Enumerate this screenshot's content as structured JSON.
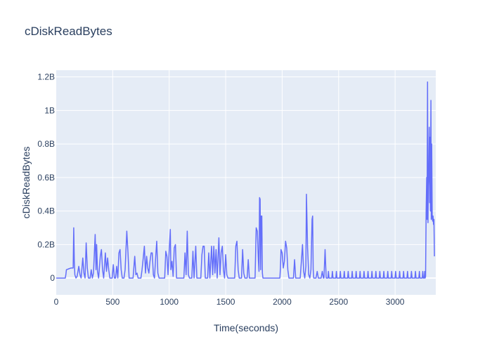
{
  "chart_data": {
    "type": "line",
    "title": "cDiskReadBytes",
    "xlabel": "Time(seconds)",
    "ylabel": "cDiskReadBytes",
    "xlim": [
      0,
      3360
    ],
    "ylim": [
      -0.1,
      1.24
    ],
    "y_unit": "B (billions of bytes)",
    "x_ticks": [
      0,
      500,
      1000,
      1500,
      2000,
      2500,
      3000
    ],
    "x_tick_labels": [
      "0",
      "500",
      "1000",
      "1500",
      "2000",
      "2500",
      "3000"
    ],
    "y_ticks": [
      0,
      0.2,
      0.4,
      0.6,
      0.8,
      1.0,
      1.2
    ],
    "y_tick_labels": [
      "0",
      "0.2B",
      "0.4B",
      "0.6B",
      "0.8B",
      "1B",
      "1.2B"
    ],
    "grid": true,
    "legend": "none",
    "colors": {
      "line": "#636efa",
      "plot_bg": "#e5ecf6",
      "grid": "#ffffff",
      "text": "#2a3f5f"
    },
    "series": [
      {
        "values": [
          [
            0,
            0
          ],
          [
            80,
            0
          ],
          [
            85,
            0.02
          ],
          [
            90,
            0.05
          ],
          [
            110,
            0.055
          ],
          [
            130,
            0.06
          ],
          [
            145,
            0.06
          ],
          [
            150,
            0.06
          ],
          [
            155,
            0.3
          ],
          [
            160,
            0.1
          ],
          [
            165,
            0.02
          ],
          [
            175,
            0.0
          ],
          [
            185,
            0.01
          ],
          [
            200,
            0.07
          ],
          [
            210,
            0.02
          ],
          [
            220,
            0.0
          ],
          [
            235,
            0.12
          ],
          [
            245,
            0.03
          ],
          [
            255,
            0.0
          ],
          [
            265,
            0.21
          ],
          [
            275,
            0.06
          ],
          [
            285,
            0.0
          ],
          [
            300,
            0.0
          ],
          [
            310,
            0.05
          ],
          [
            320,
            0.0
          ],
          [
            330,
            0.03
          ],
          [
            345,
            0.26
          ],
          [
            352,
            0.05
          ],
          [
            358,
            0.2
          ],
          [
            365,
            0.04
          ],
          [
            375,
            0.0
          ],
          [
            390,
            0.13
          ],
          [
            400,
            0.17
          ],
          [
            410,
            0.05
          ],
          [
            420,
            0.0
          ],
          [
            435,
            0.15
          ],
          [
            445,
            0.04
          ],
          [
            455,
            0.12
          ],
          [
            465,
            0.05
          ],
          [
            475,
            0.0
          ],
          [
            495,
            0.0
          ],
          [
            505,
            0.08
          ],
          [
            515,
            0.0
          ],
          [
            525,
            0.0
          ],
          [
            535,
            0.07
          ],
          [
            545,
            0.0
          ],
          [
            555,
            0.15
          ],
          [
            565,
            0.17
          ],
          [
            575,
            0.05
          ],
          [
            585,
            0.0
          ],
          [
            600,
            0.0
          ],
          [
            610,
            0.05
          ],
          [
            625,
            0.28
          ],
          [
            635,
            0.15
          ],
          [
            645,
            0.0
          ],
          [
            680,
            0.0
          ],
          [
            695,
            0.13
          ],
          [
            705,
            0.02
          ],
          [
            715,
            0.03
          ],
          [
            725,
            0.0
          ],
          [
            750,
            0.0
          ],
          [
            760,
            0.05
          ],
          [
            770,
            0.12
          ],
          [
            780,
            0.19
          ],
          [
            790,
            0.03
          ],
          [
            800,
            0.13
          ],
          [
            810,
            0.06
          ],
          [
            820,
            0.03
          ],
          [
            830,
            0.1
          ],
          [
            840,
            0.15
          ],
          [
            850,
            0.15
          ],
          [
            860,
            0.02
          ],
          [
            870,
            0.0
          ],
          [
            880,
            0.12
          ],
          [
            890,
            0.22
          ],
          [
            900,
            0.03
          ],
          [
            910,
            0.0
          ],
          [
            960,
            0.0
          ],
          [
            970,
            0.16
          ],
          [
            980,
            0.13
          ],
          [
            990,
            0.02
          ],
          [
            1000,
            0.16
          ],
          [
            1010,
            0.29
          ],
          [
            1015,
            0.05
          ],
          [
            1025,
            0.1
          ],
          [
            1035,
            0.01
          ],
          [
            1045,
            0.18
          ],
          [
            1055,
            0.2
          ],
          [
            1065,
            0.0
          ],
          [
            1130,
            0.0
          ],
          [
            1140,
            0.15
          ],
          [
            1150,
            0.02
          ],
          [
            1160,
            0.28
          ],
          [
            1170,
            0.02
          ],
          [
            1180,
            0.0
          ],
          [
            1200,
            0.0
          ],
          [
            1210,
            0.16
          ],
          [
            1220,
            0.0
          ],
          [
            1235,
            0.19
          ],
          [
            1245,
            0.0
          ],
          [
            1280,
            0.0
          ],
          [
            1290,
            0.14
          ],
          [
            1300,
            0.19
          ],
          [
            1310,
            0.19
          ],
          [
            1320,
            0.0
          ],
          [
            1340,
            0.0
          ],
          [
            1350,
            0.15
          ],
          [
            1360,
            0.0
          ],
          [
            1375,
            0.19
          ],
          [
            1385,
            0.02
          ],
          [
            1395,
            0.19
          ],
          [
            1405,
            0.03
          ],
          [
            1415,
            0.17
          ],
          [
            1425,
            0.0
          ],
          [
            1440,
            0.24
          ],
          [
            1450,
            0.02
          ],
          [
            1460,
            0.15
          ],
          [
            1470,
            0.19
          ],
          [
            1480,
            0.05
          ],
          [
            1490,
            0.0
          ],
          [
            1500,
            0.14
          ],
          [
            1510,
            0.02
          ],
          [
            1520,
            0.0
          ],
          [
            1580,
            0.0
          ],
          [
            1590,
            0.19
          ],
          [
            1600,
            0.22
          ],
          [
            1610,
            0.05
          ],
          [
            1620,
            0.0
          ],
          [
            1640,
            0.0
          ],
          [
            1650,
            0.17
          ],
          [
            1660,
            0.03
          ],
          [
            1670,
            0.0
          ],
          [
            1690,
            0.0
          ],
          [
            1700,
            0.11
          ],
          [
            1710,
            0.0
          ],
          [
            1760,
            0.0
          ],
          [
            1770,
            0.3
          ],
          [
            1780,
            0.28
          ],
          [
            1790,
            0.1
          ],
          [
            1795,
            0.04
          ],
          [
            1800,
            0.48
          ],
          [
            1805,
            0.47
          ],
          [
            1810,
            0.05
          ],
          [
            1815,
            0.37
          ],
          [
            1820,
            0.37
          ],
          [
            1825,
            0.03
          ],
          [
            1830,
            0.0
          ],
          [
            1980,
            0.0
          ],
          [
            1985,
            0.06
          ],
          [
            1990,
            0.17
          ],
          [
            2000,
            0.15
          ],
          [
            2010,
            0.06
          ],
          [
            2020,
            0.1
          ],
          [
            2030,
            0.22
          ],
          [
            2040,
            0.18
          ],
          [
            2050,
            0.05
          ],
          [
            2060,
            0.0
          ],
          [
            2100,
            0.0
          ],
          [
            2110,
            0.11
          ],
          [
            2120,
            0.0
          ],
          [
            2160,
            0.0
          ],
          [
            2170,
            0.1
          ],
          [
            2180,
            0.2
          ],
          [
            2190,
            0.04
          ],
          [
            2200,
            0.0
          ],
          [
            2210,
            0.07
          ],
          [
            2215,
            0.5
          ],
          [
            2225,
            0.18
          ],
          [
            2235,
            0.02
          ],
          [
            2245,
            0.0
          ],
          [
            2255,
            0.05
          ],
          [
            2265,
            0.35
          ],
          [
            2270,
            0.37
          ],
          [
            2275,
            0.05
          ],
          [
            2280,
            0.0
          ],
          [
            2300,
            0.0
          ],
          [
            2310,
            0.04
          ],
          [
            2320,
            0.0
          ],
          [
            2345,
            0.0
          ],
          [
            2355,
            0.04
          ],
          [
            2365,
            0.0
          ],
          [
            2370,
            0.0
          ],
          [
            2380,
            0.17
          ],
          [
            2390,
            0.0
          ],
          [
            2405,
            0.0
          ],
          [
            2410,
            0.04
          ],
          [
            2415,
            0.0
          ],
          [
            2440,
            0.0
          ],
          [
            2445,
            0.04
          ],
          [
            2450,
            0.0
          ],
          [
            2475,
            0.0
          ],
          [
            2480,
            0.04
          ],
          [
            2485,
            0.0
          ],
          [
            2510,
            0.0
          ],
          [
            2515,
            0.04
          ],
          [
            2520,
            0.0
          ],
          [
            2545,
            0.0
          ],
          [
            2550,
            0.04
          ],
          [
            2555,
            0.0
          ],
          [
            2580,
            0.0
          ],
          [
            2585,
            0.04
          ],
          [
            2590,
            0.0
          ],
          [
            2615,
            0.0
          ],
          [
            2620,
            0.04
          ],
          [
            2625,
            0.0
          ],
          [
            2650,
            0.0
          ],
          [
            2655,
            0.04
          ],
          [
            2660,
            0.0
          ],
          [
            2685,
            0.0
          ],
          [
            2690,
            0.04
          ],
          [
            2695,
            0.0
          ],
          [
            2720,
            0.0
          ],
          [
            2725,
            0.04
          ],
          [
            2730,
            0.0
          ],
          [
            2755,
            0.0
          ],
          [
            2760,
            0.04
          ],
          [
            2765,
            0.0
          ],
          [
            2790,
            0.0
          ],
          [
            2795,
            0.04
          ],
          [
            2800,
            0.0
          ],
          [
            2825,
            0.0
          ],
          [
            2830,
            0.04
          ],
          [
            2835,
            0.0
          ],
          [
            2860,
            0.0
          ],
          [
            2865,
            0.04
          ],
          [
            2870,
            0.0
          ],
          [
            2895,
            0.0
          ],
          [
            2900,
            0.04
          ],
          [
            2905,
            0.0
          ],
          [
            2930,
            0.0
          ],
          [
            2935,
            0.04
          ],
          [
            2940,
            0.0
          ],
          [
            2965,
            0.0
          ],
          [
            2970,
            0.04
          ],
          [
            2975,
            0.0
          ],
          [
            3000,
            0.0
          ],
          [
            3005,
            0.04
          ],
          [
            3010,
            0.0
          ],
          [
            3035,
            0.0
          ],
          [
            3040,
            0.04
          ],
          [
            3045,
            0.0
          ],
          [
            3070,
            0.0
          ],
          [
            3075,
            0.04
          ],
          [
            3080,
            0.0
          ],
          [
            3105,
            0.0
          ],
          [
            3110,
            0.04
          ],
          [
            3115,
            0.0
          ],
          [
            3140,
            0.0
          ],
          [
            3145,
            0.04
          ],
          [
            3150,
            0.0
          ],
          [
            3175,
            0.0
          ],
          [
            3180,
            0.04
          ],
          [
            3185,
            0.0
          ],
          [
            3210,
            0.0
          ],
          [
            3215,
            0.04
          ],
          [
            3220,
            0.0
          ],
          [
            3240,
            0.0
          ],
          [
            3245,
            0.04
          ],
          [
            3250,
            0.0
          ],
          [
            3258,
            0.0
          ],
          [
            3262,
            0.04
          ],
          [
            3266,
            0.0
          ],
          [
            3270,
            0.01
          ],
          [
            3275,
            0.4
          ],
          [
            3280,
            0.6
          ],
          [
            3283,
            0.35
          ],
          [
            3287,
            1.17
          ],
          [
            3291,
            0.33
          ],
          [
            3294,
            0.55
          ],
          [
            3298,
            0.62
          ],
          [
            3302,
            0.9
          ],
          [
            3306,
            0.45
          ],
          [
            3309,
            0.84
          ],
          [
            3313,
            0.4
          ],
          [
            3317,
            1.06
          ],
          [
            3320,
            0.35
          ],
          [
            3324,
            0.8
          ],
          [
            3328,
            0.38
          ],
          [
            3332,
            0.34
          ],
          [
            3336,
            0.37
          ],
          [
            3340,
            0.32
          ],
          [
            3344,
            0.35
          ],
          [
            3348,
            0.13
          ]
        ]
      }
    ]
  }
}
